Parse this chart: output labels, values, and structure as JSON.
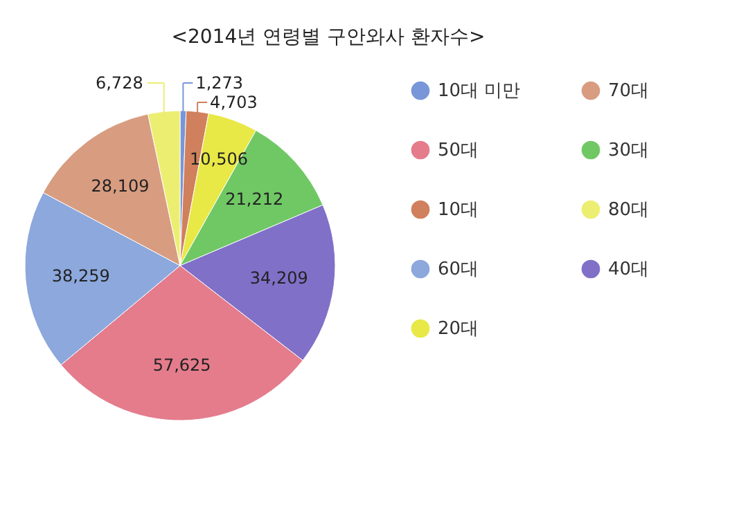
{
  "chart_data": {
    "type": "pie",
    "title": "<2014년 연령별 구안와사 환자수>",
    "categories": [
      "10대 미만",
      "10대",
      "20대",
      "30대",
      "40대",
      "50대",
      "60대",
      "70대",
      "80대"
    ],
    "values": [
      1273,
      4703,
      10506,
      21212,
      34209,
      57625,
      38259,
      28109,
      6728
    ],
    "value_labels": [
      "1,273",
      "4,703",
      "10,506",
      "21,212",
      "34,209",
      "57,625",
      "38,259",
      "28,109",
      "6,728"
    ],
    "colors": [
      "#7896d8",
      "#d0805c",
      "#e8e846",
      "#70c864",
      "#8070c8",
      "#e47c8c",
      "#8ca8dc",
      "#d89c80",
      "#ecee72"
    ],
    "legend": "right"
  }
}
